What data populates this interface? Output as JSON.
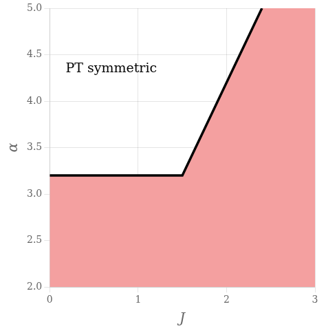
{
  "chart_data": {
    "type": "line",
    "x": [
      0,
      1.5,
      2.4
    ],
    "series": [
      {
        "type": "area",
        "color": "#F4A0A0",
        "values": [
          3.2,
          3.2,
          5.0
        ]
      },
      {
        "type": "line",
        "color": "#000000",
        "values": [
          3.2,
          3.2,
          5.0
        ]
      }
    ],
    "xlabel": "J",
    "ylabel": "α",
    "xlim": [
      0,
      3
    ],
    "ylim": [
      2,
      5
    ],
    "xticks": [
      0,
      1,
      2,
      3
    ],
    "yticks": [
      2,
      2.5,
      3,
      3.5,
      4,
      4.5,
      5
    ],
    "annotations": [
      {
        "text": "PT symmetric",
        "x": 0.18,
        "y": 4.35
      }
    ],
    "grid": true
  }
}
